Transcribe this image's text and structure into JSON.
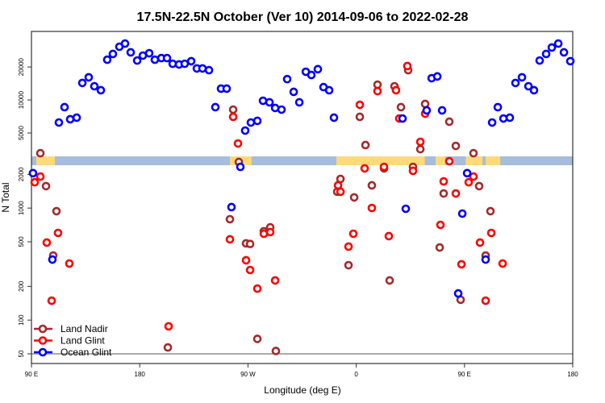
{
  "chart_data": {
    "type": "scatter",
    "title": "17.5N-22.5N October (Ver 10)   2014-09-06 to 2022-02-28",
    "xlabel": "Longitude (deg E)",
    "ylabel": "N Total",
    "xlim": [
      90,
      540
    ],
    "x_ticks": [
      {
        "value": 90,
        "label": "90 E"
      },
      {
        "value": 180,
        "label": "180"
      },
      {
        "value": 270,
        "label": "90 W"
      },
      {
        "value": 360,
        "label": "0"
      },
      {
        "value": 450,
        "label": "90 E"
      },
      {
        "value": 540,
        "label": "180"
      }
    ],
    "y_scale": "log (broken axis)",
    "y_ticks_lower": [
      {
        "value": 50,
        "label": "50"
      },
      {
        "value": 100,
        "label": "100"
      },
      {
        "value": 200,
        "label": "200"
      },
      {
        "value": 500,
        "label": "500"
      },
      {
        "value": 1000,
        "label": "1000"
      },
      {
        "value": 2000,
        "label": "2000"
      }
    ],
    "y_ticks_upper": [
      {
        "value": 5000,
        "label": "5000"
      },
      {
        "value": 10000,
        "label": "10000"
      },
      {
        "value": 20000,
        "label": "20000"
      }
    ],
    "reference_line_value": 50,
    "land_band": {
      "ocean_color": "#a6bddb",
      "land_color": "#ffd97a",
      "land_lon_ranges": [
        [
          94,
          109.5
        ],
        [
          255,
          273
        ],
        [
          343.5,
          417
        ],
        [
          426,
          434
        ],
        [
          451,
          465
        ],
        [
          467.6,
          479.7
        ]
      ]
    },
    "legend": {
      "placement": "bottom-left",
      "entries": [
        "Land Nadir",
        "Land Glint",
        "Ocean Glint"
      ]
    },
    "series": [
      {
        "name": "Land Nadir",
        "color": "#a52a2a",
        "points": [
          [
            97.4,
            3270
          ],
          [
            102.1,
            1570
          ],
          [
            110.8,
            938
          ],
          [
            108.1,
            377
          ],
          [
            203.4,
            57
          ],
          [
            257.7,
            8170
          ],
          [
            262.4,
            2580
          ],
          [
            367.7,
            3880
          ],
          [
            363,
            7020
          ],
          [
            377.7,
            13800
          ],
          [
            391.8,
            13350
          ],
          [
            346.9,
            1820
          ],
          [
            344.2,
            1400
          ],
          [
            358.3,
            1245
          ],
          [
            373,
            1595
          ],
          [
            383.1,
            2260
          ],
          [
            255,
            795
          ],
          [
            268.4,
            484
          ],
          [
            271.8,
            478
          ],
          [
            283.2,
            621
          ],
          [
            288.5,
            673
          ],
          [
            277.8,
            68
          ],
          [
            293.2,
            53
          ],
          [
            353.6,
            309
          ],
          [
            387.8,
            226
          ],
          [
            403.2,
            18700
          ],
          [
            397.2,
            8600
          ],
          [
            417.3,
            9200
          ],
          [
            437.4,
            6340
          ],
          [
            413.3,
            3560
          ],
          [
            442.8,
            3810
          ],
          [
            457.5,
            3270
          ],
          [
            407.2,
            2330
          ],
          [
            432.7,
            1350
          ],
          [
            462.2,
            1570
          ],
          [
            471.6,
            938
          ],
          [
            429.4,
            445
          ],
          [
            467.6,
            377
          ],
          [
            446.8,
            152
          ]
        ]
      },
      {
        "name": "Land Glint",
        "color": "#ff0000",
        "points": [
          [
            92.7,
            1700
          ],
          [
            97.4,
            1910
          ],
          [
            102.7,
            492
          ],
          [
            112.1,
            600
          ],
          [
            106.8,
            149
          ],
          [
            121.5,
            320
          ],
          [
            204,
            88
          ],
          [
            257.7,
            7020
          ],
          [
            261.7,
            4010
          ],
          [
            255,
            526
          ],
          [
            268.4,
            342
          ],
          [
            271.8,
            280
          ],
          [
            283.2,
            590
          ],
          [
            288.5,
            610
          ],
          [
            277.8,
            191
          ],
          [
            292.6,
            226
          ],
          [
            344.9,
            1595
          ],
          [
            346.9,
            1400
          ],
          [
            357.6,
            590
          ],
          [
            353.6,
            453
          ],
          [
            363,
            9040
          ],
          [
            367,
            2260
          ],
          [
            373,
            1002
          ],
          [
            377.7,
            12050
          ],
          [
            383.1,
            2330
          ],
          [
            387.1,
            562
          ],
          [
            402.5,
            20400
          ],
          [
            393.1,
            12270
          ],
          [
            395.8,
            6780
          ],
          [
            417.3,
            7500
          ],
          [
            413.3,
            4150
          ],
          [
            407.2,
            2150
          ],
          [
            437.4,
            2620
          ],
          [
            432.7,
            1730
          ],
          [
            442.8,
            1350
          ],
          [
            453.5,
            1700
          ],
          [
            457.5,
            1910
          ],
          [
            430,
            708
          ],
          [
            472.3,
            600
          ],
          [
            462.9,
            492
          ],
          [
            447.5,
            315
          ],
          [
            481.7,
            320
          ],
          [
            467.6,
            149
          ]
        ]
      },
      {
        "name": "Ocean Glint",
        "color": "#0000ff",
        "points": [
          [
            91.3,
            2050
          ],
          [
            107.4,
            347
          ],
          [
            112.8,
            6230
          ],
          [
            117.5,
            8600
          ],
          [
            122.2,
            6670
          ],
          [
            127.6,
            6900
          ],
          [
            132.3,
            14300
          ],
          [
            137.6,
            16100
          ],
          [
            142.3,
            13350
          ],
          [
            147.7,
            12270
          ],
          [
            153,
            23300
          ],
          [
            157.7,
            26300
          ],
          [
            163.1,
            30600
          ],
          [
            167.8,
            32700
          ],
          [
            172.5,
            27200
          ],
          [
            177.9,
            22900
          ],
          [
            182.6,
            25400
          ],
          [
            187.9,
            26700
          ],
          [
            192.6,
            23300
          ],
          [
            198,
            24100
          ],
          [
            202.7,
            24100
          ],
          [
            207.4,
            21400
          ],
          [
            212.7,
            21100
          ],
          [
            217.4,
            21400
          ],
          [
            222.8,
            22600
          ],
          [
            227.5,
            19400
          ],
          [
            232.2,
            19400
          ],
          [
            237.6,
            18700
          ],
          [
            242.9,
            8600
          ],
          [
            247.6,
            12700
          ],
          [
            252.3,
            12700
          ],
          [
            256.3,
            1020
          ],
          [
            263.7,
            2330
          ],
          [
            267.7,
            5260
          ],
          [
            272.4,
            6230
          ],
          [
            277.8,
            6450
          ],
          [
            282.5,
            9840
          ],
          [
            287.9,
            9520
          ],
          [
            292.6,
            8460
          ],
          [
            297.9,
            8170
          ],
          [
            302.6,
            15500
          ],
          [
            308,
            11860
          ],
          [
            312.7,
            9520
          ],
          [
            318.1,
            18100
          ],
          [
            322.7,
            16900
          ],
          [
            328.1,
            19100
          ],
          [
            332.8,
            13100
          ],
          [
            337.5,
            12270
          ],
          [
            341.5,
            6900
          ],
          [
            398.5,
            6780
          ],
          [
            401.2,
            986
          ],
          [
            418.6,
            8040
          ],
          [
            422.7,
            15800
          ],
          [
            427.4,
            16400
          ],
          [
            431.4,
            8040
          ],
          [
            448.2,
            893
          ],
          [
            444.8,
            173
          ],
          [
            452.2,
            2050
          ],
          [
            467.6,
            347
          ],
          [
            473,
            6230
          ],
          [
            477.7,
            8600
          ],
          [
            482.4,
            6780
          ],
          [
            487.7,
            6900
          ],
          [
            492.4,
            14300
          ],
          [
            497.8,
            16100
          ],
          [
            503.2,
            13350
          ],
          [
            507.8,
            12270
          ],
          [
            512.5,
            22900
          ],
          [
            517.9,
            26300
          ],
          [
            522.6,
            30100
          ],
          [
            528,
            32700
          ],
          [
            532.7,
            27200
          ],
          [
            538,
            22600
          ]
        ]
      }
    ]
  }
}
